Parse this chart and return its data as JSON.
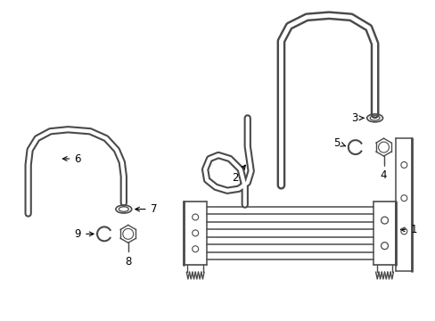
{
  "background_color": "#ffffff",
  "line_color": "#4a4a4a",
  "lw_pipe": 5.5,
  "lw_thin": 1.0,
  "label_fontsize": 8.5,
  "figsize": [
    4.89,
    3.6
  ],
  "dpi": 100
}
